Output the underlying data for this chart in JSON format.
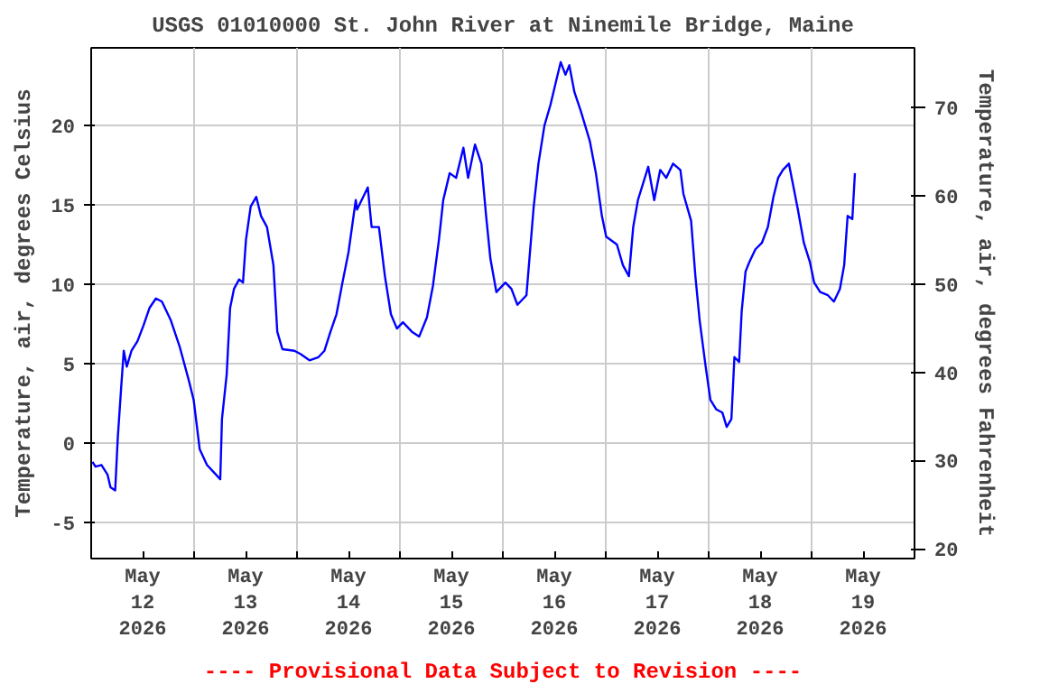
{
  "chart_data": {
    "type": "line",
    "title": "USGS 01010000 St. John River at Ninemile Bridge, Maine",
    "ylabel": "Temperature, air, degrees Celsius",
    "y2label": "Temperature, air, degrees Fahrenheit",
    "annotations": [
      "---- Provisional Data Subject to Revision ----"
    ],
    "x": [
      "2026-05-12T00:18",
      "2026-05-12T01:00",
      "2026-05-12T02:24",
      "2026-05-12T03:48",
      "2026-05-12T04:30",
      "2026-05-12T05:36",
      "2026-05-12T06:12",
      "2026-05-12T07:00",
      "2026-05-12T07:36",
      "2026-05-12T08:18",
      "2026-05-12T09:24",
      "2026-05-12T10:48",
      "2026-05-12T12:12",
      "2026-05-12T13:36",
      "2026-05-12T15:06",
      "2026-05-12T16:30",
      "2026-05-12T18:36",
      "2026-05-12T20:42",
      "2026-05-12T22:48",
      "2026-05-12T23:54",
      "2026-05-13T01:18",
      "2026-05-13T03:00",
      "2026-05-13T04:24",
      "2026-05-13T06:06",
      "2026-05-13T06:30",
      "2026-05-13T07:36",
      "2026-05-13T08:24",
      "2026-05-13T09:18",
      "2026-05-13T10:30",
      "2026-05-13T11:24",
      "2026-05-13T12:06",
      "2026-05-13T13:12",
      "2026-05-13T14:30",
      "2026-05-13T15:36",
      "2026-05-13T17:00",
      "2026-05-13T18:30",
      "2026-05-13T19:24",
      "2026-05-13T20:36",
      "2026-05-13T23:24",
      "2026-05-14T00:48",
      "2026-05-14T02:54",
      "2026-05-14T05:00",
      "2026-05-14T06:24",
      "2026-05-14T07:48",
      "2026-05-14T09:12",
      "2026-05-14T10:36",
      "2026-05-14T12:00",
      "2026-05-14T13:42",
      "2026-05-14T14:00",
      "2026-05-14T16:30",
      "2026-05-14T17:24",
      "2026-05-14T19:06",
      "2026-05-14T20:30",
      "2026-05-14T21:54",
      "2026-05-14T23:18",
      "2026-05-15T00:42",
      "2026-05-15T02:48",
      "2026-05-15T04:30",
      "2026-05-15T06:18",
      "2026-05-15T07:42",
      "2026-05-15T09:06",
      "2026-05-15T10:06",
      "2026-05-15T11:36",
      "2026-05-15T13:06",
      "2026-05-15T14:48",
      "2026-05-15T15:54",
      "2026-05-15T17:30",
      "2026-05-15T19:00",
      "2026-05-15T20:06",
      "2026-05-15T21:06",
      "2026-05-15T22:30",
      "2026-05-16T00:36",
      "2026-05-16T02:00",
      "2026-05-16T03:24",
      "2026-05-16T05:30",
      "2026-05-16T06:12",
      "2026-05-16T07:12",
      "2026-05-16T08:18",
      "2026-05-16T09:42",
      "2026-05-16T11:06",
      "2026-05-16T12:30",
      "2026-05-16T13:30",
      "2026-05-16T14:36",
      "2026-05-16T15:30",
      "2026-05-16T16:42",
      "2026-05-16T18:12",
      "2026-05-16T20:18",
      "2026-05-16T21:42",
      "2026-05-16T23:06",
      "2026-05-17T00:06",
      "2026-05-17T02:36",
      "2026-05-17T04:00",
      "2026-05-17T05:24",
      "2026-05-17T06:24",
      "2026-05-17T07:30",
      "2026-05-17T09:54",
      "2026-05-17T11:18",
      "2026-05-17T12:42",
      "2026-05-17T14:06",
      "2026-05-17T15:42",
      "2026-05-17T17:24",
      "2026-05-17T18:06",
      "2026-05-17T19:54",
      "2026-05-17T20:54",
      "2026-05-17T21:54",
      "2026-05-17T23:18",
      "2026-05-18T00:24",
      "2026-05-18T01:48",
      "2026-05-18T03:12",
      "2026-05-18T04:12",
      "2026-05-18T05:18",
      "2026-05-18T06:00",
      "2026-05-18T07:06",
      "2026-05-18T07:42",
      "2026-05-18T08:36",
      "2026-05-18T09:30",
      "2026-05-18T10:54",
      "2026-05-18T12:24",
      "2026-05-18T13:48",
      "2026-05-18T15:06",
      "2026-05-18T16:12",
      "2026-05-18T17:18",
      "2026-05-18T18:42",
      "2026-05-18T19:48",
      "2026-05-18T20:48",
      "2026-05-18T22:12",
      "2026-05-18T23:36",
      "2026-05-19T00:36",
      "2026-05-19T02:00",
      "2026-05-19T03:48",
      "2026-05-19T05:12",
      "2026-05-19T06:36",
      "2026-05-19T07:36",
      "2026-05-19T08:24",
      "2026-05-19T09:30",
      "2026-05-19T10:06"
    ],
    "series": [
      {
        "color": "#0000ff",
        "values": [
          -1.2,
          -1.5,
          -1.4,
          -2.0,
          -2.8,
          -3.0,
          0.3,
          3.5,
          5.8,
          4.8,
          5.8,
          6.4,
          7.4,
          8.5,
          9.1,
          8.9,
          7.7,
          6.0,
          3.9,
          2.7,
          -0.4,
          -1.4,
          -1.8,
          -2.3,
          1.5,
          4.3,
          8.5,
          9.7,
          10.3,
          10.1,
          12.8,
          14.9,
          15.5,
          14.3,
          13.6,
          11.2,
          7.0,
          5.9,
          5.8,
          5.6,
          5.2,
          5.4,
          5.8,
          7.0,
          8.1,
          10.1,
          12.0,
          15.3,
          14.7,
          16.1,
          13.6,
          13.6,
          10.5,
          8.1,
          7.2,
          7.6,
          7.0,
          6.7,
          7.9,
          9.9,
          12.8,
          15.3,
          17.0,
          16.7,
          18.6,
          16.7,
          18.8,
          17.6,
          14.3,
          11.6,
          9.5,
          10.1,
          9.7,
          8.7,
          9.3,
          11.6,
          14.9,
          17.6,
          20.0,
          21.3,
          22.9,
          24.0,
          23.2,
          23.8,
          22.1,
          20.9,
          19.0,
          17.0,
          14.3,
          13.0,
          12.5,
          11.2,
          10.5,
          13.6,
          15.3,
          17.4,
          15.3,
          17.2,
          16.7,
          17.6,
          17.2,
          15.7,
          14.0,
          10.5,
          7.7,
          4.8,
          2.7,
          2.1,
          1.9,
          1.0,
          1.5,
          5.4,
          5.1,
          8.3,
          10.8,
          11.4,
          12.2,
          12.6,
          13.6,
          15.5,
          16.7,
          17.2,
          17.6,
          16.1,
          14.7,
          12.6,
          11.4,
          10.1,
          9.5,
          9.3,
          8.9,
          9.7,
          11.2,
          14.3,
          14.1,
          17.0
        ]
      }
    ],
    "xlim": [
      "2026-05-12T00:00",
      "2026-05-20T00:00"
    ],
    "xticks": [
      {
        "value": "2026-05-12T12:00",
        "label": "May\n12\n2026"
      },
      {
        "value": "2026-05-13T00:00",
        "label": null
      },
      {
        "value": "2026-05-13T12:00",
        "label": "May\n13\n2026"
      },
      {
        "value": "2026-05-14T00:00",
        "label": null
      },
      {
        "value": "2026-05-14T12:00",
        "label": "May\n14\n2026"
      },
      {
        "value": "2026-05-15T00:00",
        "label": null
      },
      {
        "value": "2026-05-15T12:00",
        "label": "May\n15\n2026"
      },
      {
        "value": "2026-05-16T00:00",
        "label": null
      },
      {
        "value": "2026-05-16T12:00",
        "label": "May\n16\n2026"
      },
      {
        "value": "2026-05-17T00:00",
        "label": null
      },
      {
        "value": "2026-05-17T12:00",
        "label": "May\n17\n2026"
      },
      {
        "value": "2026-05-18T00:00",
        "label": null
      },
      {
        "value": "2026-05-18T12:00",
        "label": "May\n18\n2026"
      },
      {
        "value": "2026-05-19T00:00",
        "label": null
      },
      {
        "value": "2026-05-19T12:00",
        "label": "May\n19\n2026"
      }
    ],
    "ylim": [
      -7.3,
      24.9
    ],
    "yticks": [
      -5,
      0,
      5,
      10,
      15,
      20
    ],
    "y2lim": [
      18.9,
      76.8
    ],
    "y2ticks": [
      20,
      30,
      40,
      50,
      60,
      70
    ],
    "grid": true,
    "line_style": "solid",
    "marker": "none"
  }
}
